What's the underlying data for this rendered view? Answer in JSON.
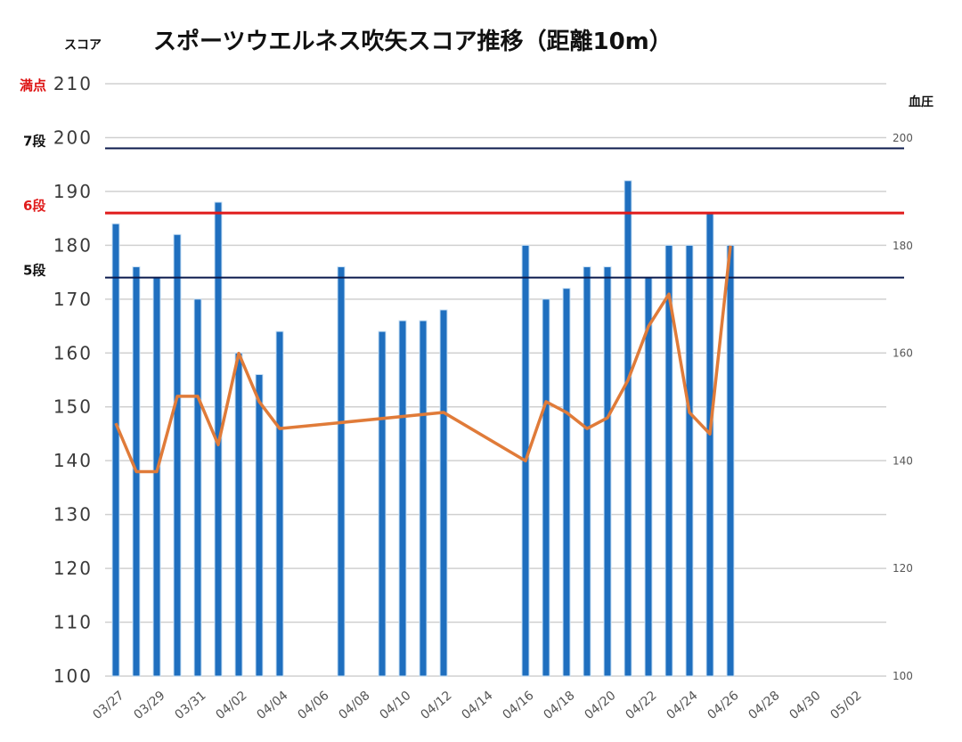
{
  "chart_data": {
    "type": "bar",
    "title": "スポーツウエルネス吹矢スコア推移（距離10m）",
    "ylabel": "スコア",
    "y2label": "血圧",
    "ylim": [
      100,
      210
    ],
    "yticks": [
      100,
      110,
      120,
      130,
      140,
      150,
      160,
      170,
      180,
      190,
      200,
      210
    ],
    "y2lim": [
      100,
      200
    ],
    "y2ticks": [
      100,
      120,
      140,
      160,
      180,
      200
    ],
    "x_ticks": [
      "03/27",
      "03/29",
      "03/31",
      "04/02",
      "04/04",
      "04/06",
      "04/08",
      "04/10",
      "04/12",
      "04/14",
      "04/16",
      "04/18",
      "04/20",
      "04/22",
      "04/24",
      "04/26",
      "04/28",
      "04/30",
      "05/02"
    ],
    "grid": true,
    "series": [
      {
        "axis": "left",
        "kind": "bar",
        "color": "#1f6fbf",
        "x": [
          "03/27",
          "03/28",
          "03/29",
          "03/30",
          "03/31",
          "04/01",
          "04/02",
          "04/03",
          "04/04",
          "04/07",
          "04/09",
          "04/10",
          "04/11",
          "04/12",
          "04/16",
          "04/17",
          "04/18",
          "04/19",
          "04/20",
          "04/21",
          "04/22",
          "04/23",
          "04/24",
          "04/25",
          "04/26"
        ],
        "values": [
          184,
          176,
          174,
          182,
          170,
          188,
          160,
          156,
          164,
          176,
          164,
          166,
          166,
          168,
          180,
          170,
          172,
          176,
          176,
          192,
          174,
          180,
          180,
          186,
          180
        ]
      },
      {
        "axis": "right",
        "kind": "line",
        "color": "#e07b39",
        "x": [
          "03/27",
          "03/28",
          "03/29",
          "03/30",
          "03/31",
          "04/01",
          "04/02",
          "04/03",
          "04/04",
          "04/12",
          "04/16",
          "04/17",
          "04/18",
          "04/19",
          "04/20",
          "04/21",
          "04/22",
          "04/23",
          "04/24",
          "04/25",
          "04/26"
        ],
        "values": [
          147,
          138,
          138,
          152,
          152,
          143,
          160,
          151,
          146,
          149,
          140,
          151,
          149,
          146,
          148,
          155,
          165,
          171,
          149,
          145,
          180
        ]
      }
    ],
    "reference_lines": [
      {
        "label": "満点",
        "value": 210,
        "color": "#dd1111",
        "line": false
      },
      {
        "label": "7段",
        "value": 198,
        "color": "#0b1a4d",
        "line": true
      },
      {
        "label": "6段",
        "value": 186,
        "color": "#e01b1b",
        "line": true
      },
      {
        "label": "5段",
        "value": 174,
        "color": "#0b1a4d",
        "line": true
      }
    ]
  }
}
